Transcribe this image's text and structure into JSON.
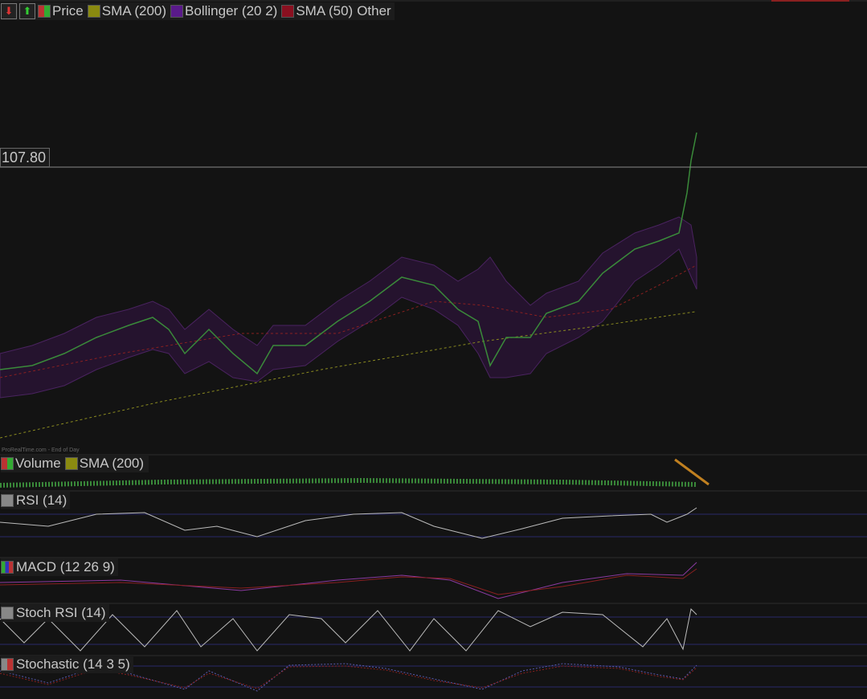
{
  "price_legend": [
    "Price",
    "SMA (200)",
    "Bollinger (20 2)",
    "SMA (50)",
    "Other"
  ],
  "price_label": "107.80",
  "watermark": "ProRealTime.com - End of Day",
  "panels": {
    "volume": [
      "Volume",
      "SMA (200)"
    ],
    "rsi": "RSI (14)",
    "macd": "MACD (12 26 9)",
    "stoch_rsi": "Stoch RSI (14)",
    "stochastic": "Stochastic (14 3 5)"
  }
}
